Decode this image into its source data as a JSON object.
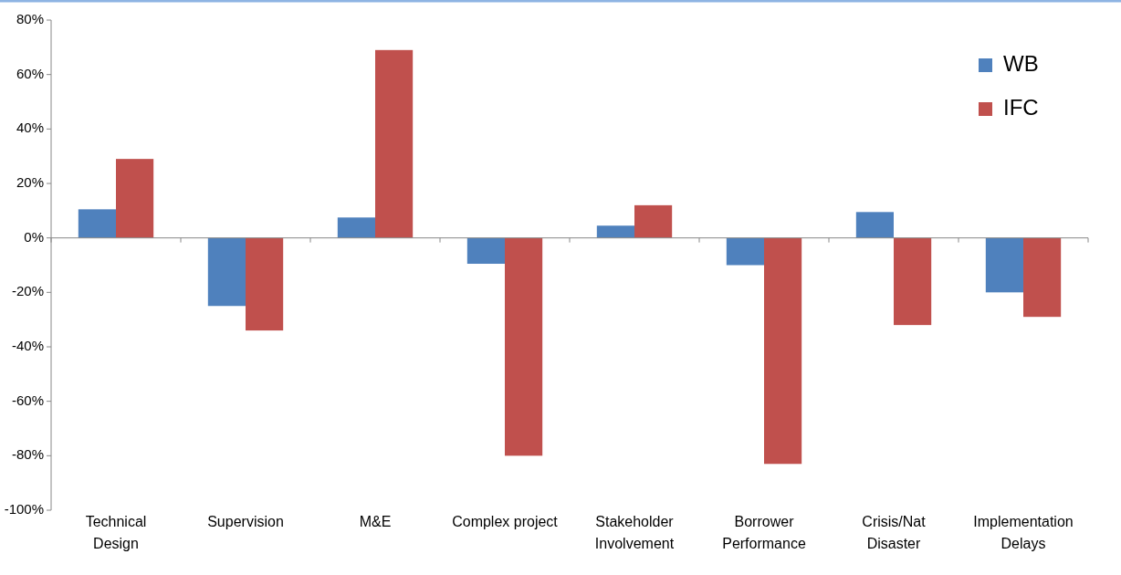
{
  "chart_data": {
    "type": "bar",
    "categories": [
      "Technical Design",
      "Supervision",
      "M&E",
      "Complex project",
      "Stakeholder Involvement",
      "Borrower Performance",
      "Crisis/Nat Disaster",
      "Implementation Delays"
    ],
    "series": [
      {
        "name": "WB",
        "color": "#4f81bd",
        "values": [
          10.5,
          -25,
          7.5,
          -9.5,
          4.5,
          -10,
          9.5,
          -20
        ]
      },
      {
        "name": "IFC",
        "color": "#c0504d",
        "values": [
          29,
          -34,
          69,
          -80,
          12,
          -83,
          -32,
          -29
        ]
      }
    ],
    "ylim": [
      -100,
      80
    ],
    "yticks": [
      {
        "value": -100,
        "label": "-100%"
      },
      {
        "value": -80,
        "label": "-80%"
      },
      {
        "value": -60,
        "label": "-60%"
      },
      {
        "value": -40,
        "label": "-40%"
      },
      {
        "value": -20,
        "label": "-20%"
      },
      {
        "value": 0,
        "label": "0%"
      },
      {
        "value": 20,
        "label": "20%"
      },
      {
        "value": 40,
        "label": "40%"
      },
      {
        "value": 60,
        "label": "60%"
      },
      {
        "value": 80,
        "label": "80%"
      }
    ],
    "legend": "top right"
  }
}
